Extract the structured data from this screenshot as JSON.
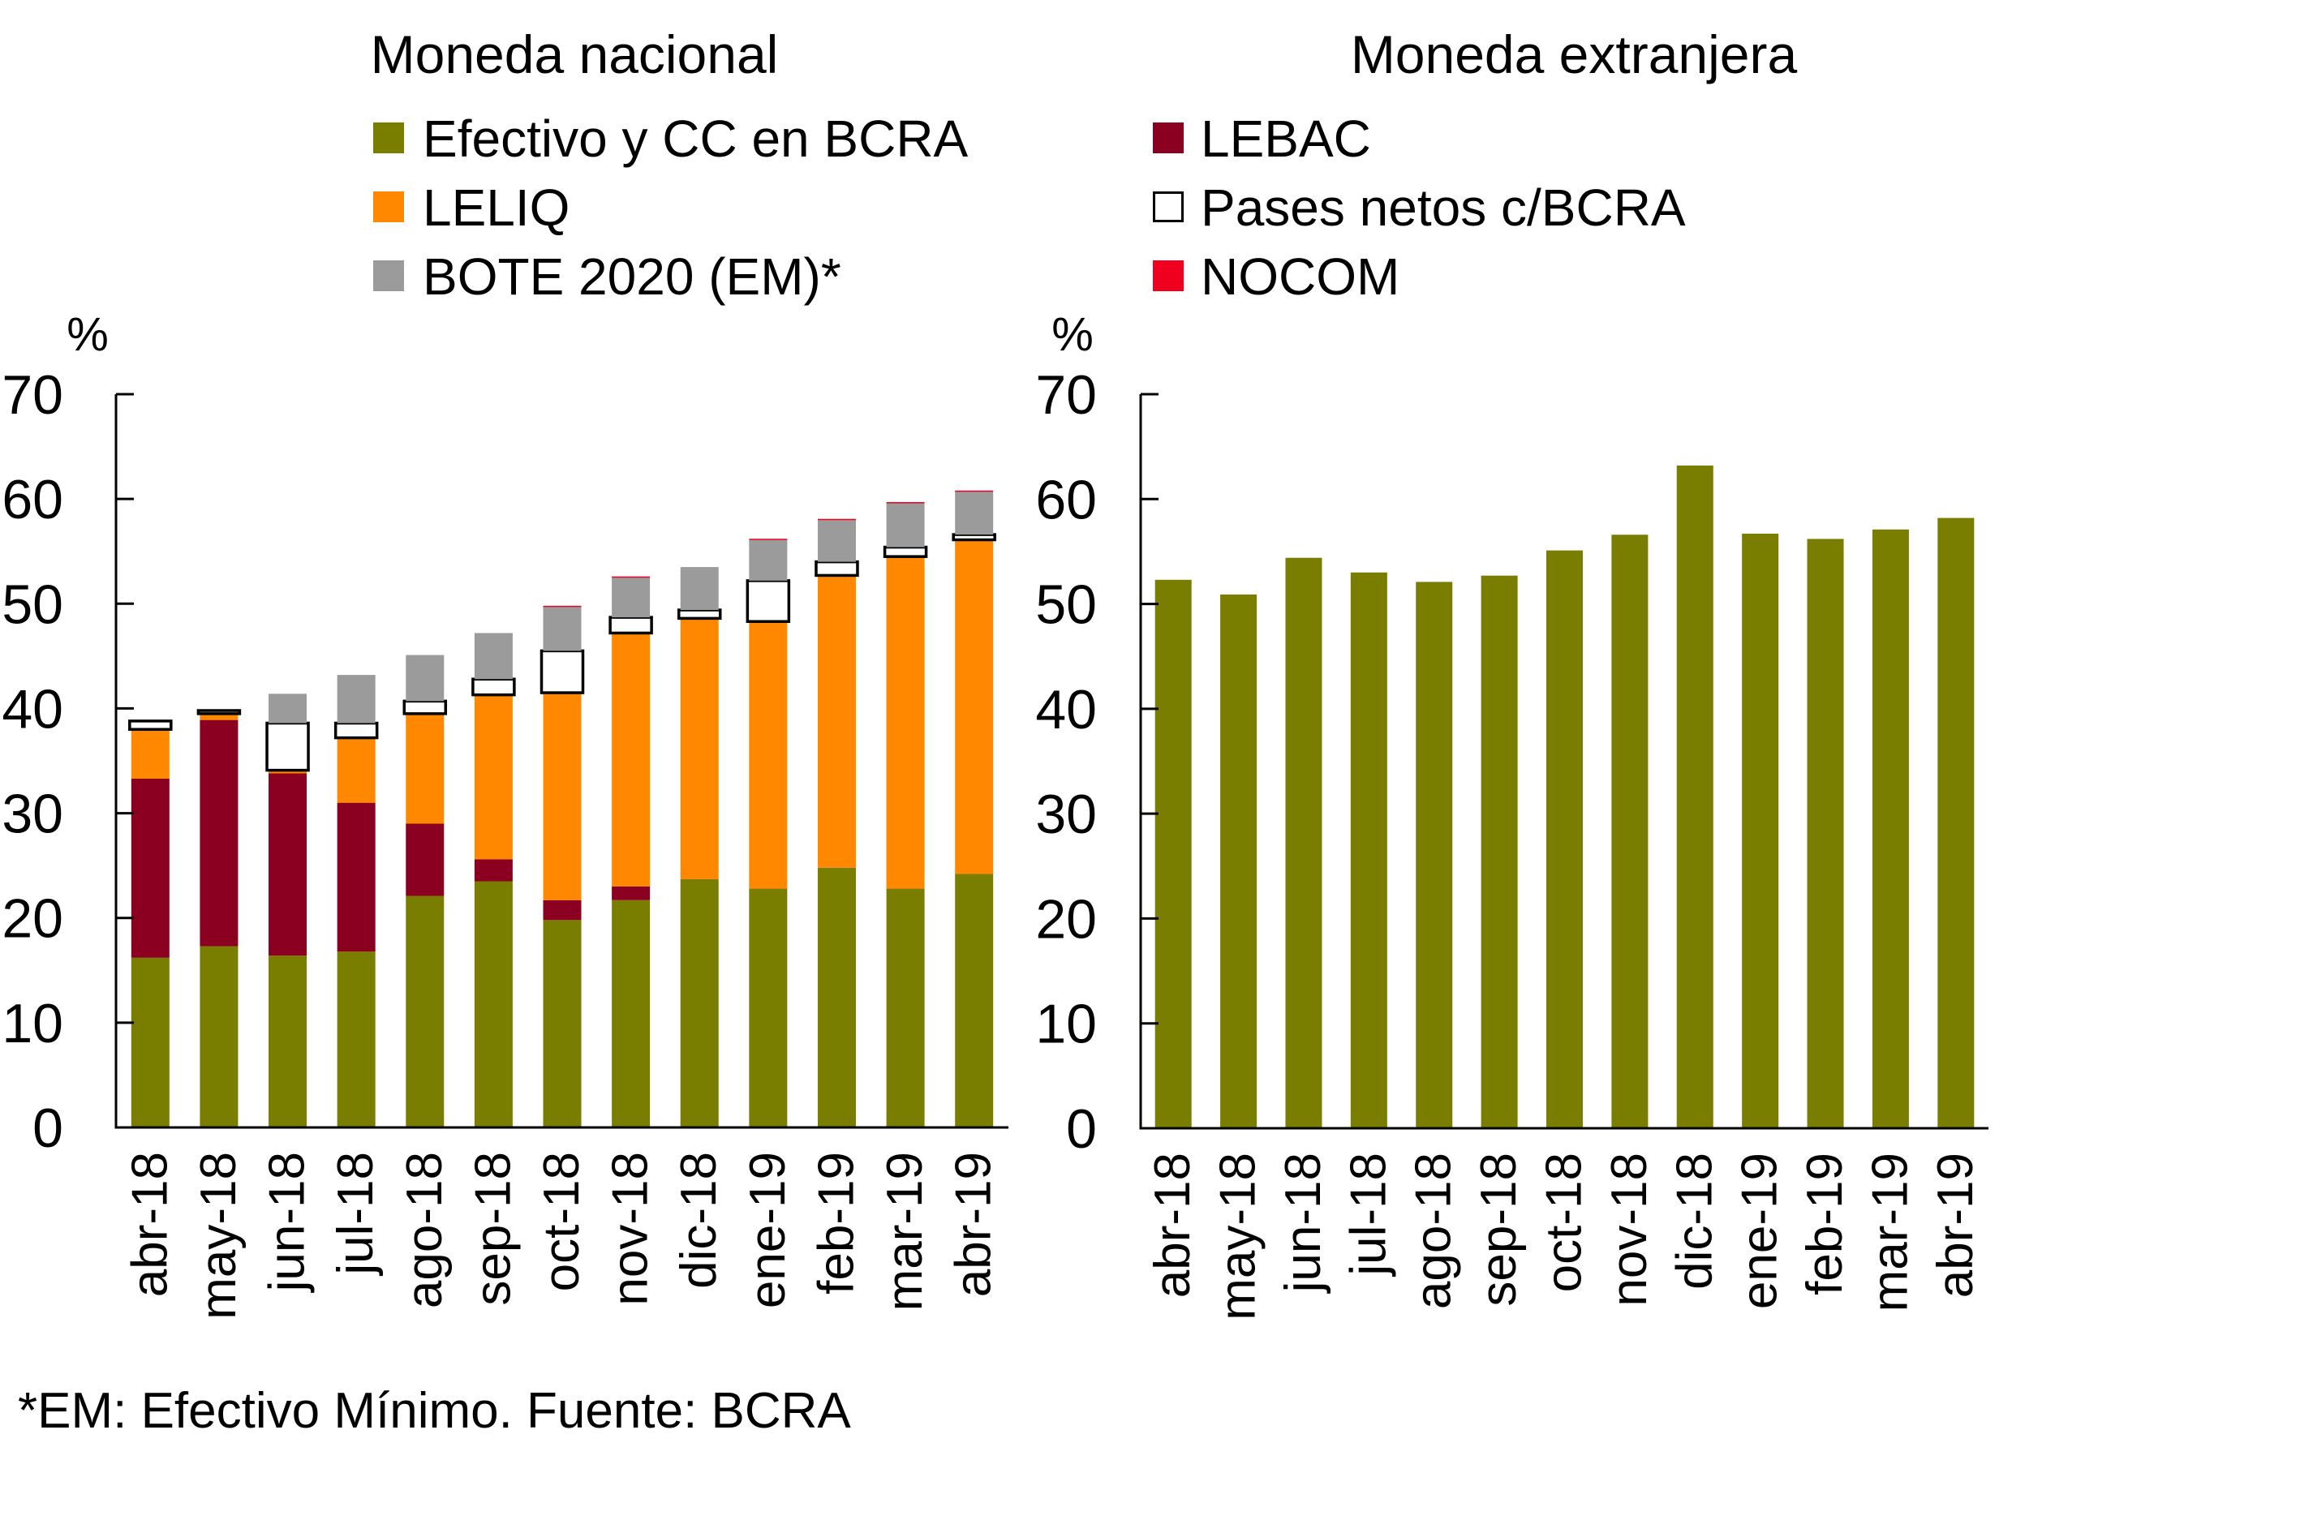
{
  "footnote": "*EM: Efectivo Mínimo. Fuente: BCRA",
  "legend": [
    {
      "key": "efectivo",
      "label": "Efectivo y CC en BCRA",
      "color": "#7A7E00",
      "outline": false,
      "column": "left"
    },
    {
      "key": "leliq",
      "label": "LELIQ",
      "color": "#FF8800",
      "outline": false,
      "column": "left"
    },
    {
      "key": "bote",
      "label": "BOTE 2020 (EM)*",
      "color": "#9B9B9B",
      "outline": false,
      "column": "left"
    },
    {
      "key": "lebac",
      "label": "LEBAC",
      "color": "#8B0020",
      "outline": false,
      "column": "right"
    },
    {
      "key": "pases",
      "label": "Pases netos c/BCRA",
      "color": "#FFFFFF",
      "outline": true,
      "column": "right"
    },
    {
      "key": "nocom",
      "label": "NOCOM",
      "color": "#F0001E",
      "outline": false,
      "column": "right"
    }
  ],
  "chart_data": [
    {
      "type": "bar",
      "stacked": true,
      "title": "Moneda nacional",
      "xlabel": "",
      "ylabel": "%",
      "ylim": [
        0,
        70
      ],
      "yticks": [
        "0",
        "10",
        "20",
        "30",
        "40",
        "50",
        "60",
        "70"
      ],
      "grid": false,
      "categories": [
        "abr-18",
        "may-18",
        "jun-18",
        "jul-18",
        "ago-18",
        "sep-18",
        "oct-18",
        "nov-18",
        "dic-18",
        "ene-19",
        "feb-19",
        "mar-19",
        "abr-19"
      ],
      "series": [
        {
          "key": "efectivo",
          "name": "Efectivo y CC en BCRA",
          "values": [
            16.2,
            17.3,
            16.4,
            16.8,
            22.1,
            23.5,
            19.8,
            21.7,
            23.7,
            22.8,
            24.8,
            22.8,
            24.2
          ]
        },
        {
          "key": "lebac",
          "name": "LEBAC",
          "values": [
            17.1,
            21.6,
            17.4,
            14.2,
            6.9,
            2.1,
            1.9,
            1.3,
            0.0,
            0.0,
            0.0,
            0.0,
            0.0
          ]
        },
        {
          "key": "leliq",
          "name": "LELIQ",
          "values": [
            4.7,
            0.6,
            0.3,
            6.2,
            10.5,
            15.7,
            19.8,
            24.2,
            24.9,
            25.5,
            27.9,
            31.7,
            31.9
          ]
        },
        {
          "key": "pases",
          "name": "Pases netos c/BCRA",
          "values": [
            0.8,
            0.3,
            4.5,
            1.4,
            1.2,
            1.5,
            4.0,
            1.5,
            0.8,
            3.9,
            1.3,
            0.9,
            0.5
          ]
        },
        {
          "key": "bote",
          "name": "BOTE 2020 (EM)*",
          "values": [
            0.0,
            0.0,
            2.8,
            4.6,
            4.4,
            4.4,
            4.2,
            3.8,
            4.1,
            3.9,
            4.0,
            4.2,
            4.1
          ]
        },
        {
          "key": "nocom",
          "name": "NOCOM",
          "values": [
            0.0,
            0.0,
            0.0,
            0.0,
            0.0,
            0.0,
            0.1,
            0.1,
            0.0,
            0.1,
            0.1,
            0.1,
            0.1
          ]
        }
      ]
    },
    {
      "type": "bar",
      "stacked": false,
      "title": "Moneda extranjera",
      "xlabel": "",
      "ylabel": "%",
      "ylim": [
        0,
        70
      ],
      "yticks": [
        "0",
        "10",
        "20",
        "30",
        "40",
        "50",
        "60",
        "70"
      ],
      "grid": false,
      "categories": [
        "abr-18",
        "may-18",
        "jun-18",
        "jul-18",
        "ago-18",
        "sep-18",
        "oct-18",
        "nov-18",
        "dic-18",
        "ene-19",
        "feb-19",
        "mar-19",
        "abr-19"
      ],
      "series": [
        {
          "key": "efectivo",
          "name": "Efectivo y CC en BCRA",
          "values": [
            52.3,
            50.9,
            54.4,
            53.0,
            52.1,
            52.7,
            55.1,
            56.6,
            63.2,
            56.7,
            56.2,
            57.1,
            58.2
          ]
        }
      ]
    }
  ]
}
